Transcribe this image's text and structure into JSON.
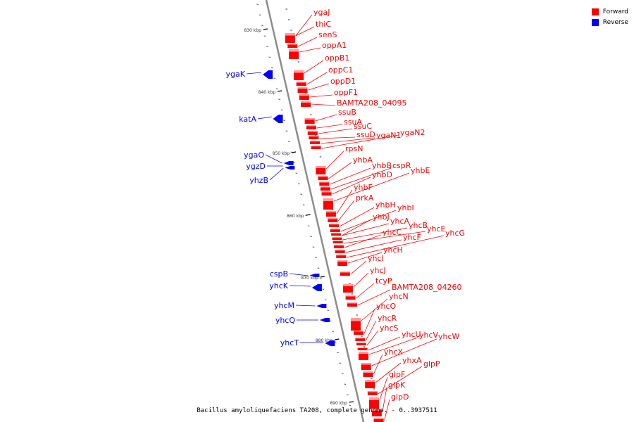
{
  "colors": {
    "forward": "#ff0000",
    "reverse": "#0000ff",
    "backbone": "#8c8c8c"
  },
  "legend": {
    "forward": "Forward",
    "reverse": "Reverse"
  },
  "caption": "Bacillus amyloliquefaciens TA208, complete genome. - 0..3937511",
  "scale_labels": [
    "830 kbp",
    "840 kbp",
    "850 kbp",
    "860 kbp",
    "870 kbp",
    "880 kbp",
    "890 kbp"
  ],
  "forward_genes": [
    "ygaJ",
    "thiC",
    "senS",
    "oppA1",
    "oppB1",
    "oppC1",
    "oppD1",
    "oppF1",
    "BAMTA208_04095",
    "ssuB",
    "ssuA",
    "ssuC",
    "ssuD",
    "ygaN1",
    "ygaN2",
    "rpsN",
    "yhbA",
    "yhbB",
    "cspR",
    "yhbD",
    "yhbE",
    "yhbF",
    "prkA",
    "yhbH",
    "yhbI",
    "yhbJ",
    "yhcA",
    "yhcB",
    "yhcE",
    "yhcC",
    "yhcF",
    "yhcG",
    "yhcH",
    "yhcI",
    "yhcJ",
    "tcyP",
    "BAMTA208_04260",
    "yhcN",
    "yhcO",
    "yhcR",
    "yhcS",
    "yhcU",
    "yhcV",
    "yhcW",
    "yhcX",
    "yhxA",
    "glpP",
    "glpF",
    "glpK",
    "glpD"
  ],
  "reverse_genes": [
    "ygaK",
    "katA",
    "ygaO",
    "ygzD",
    "yhzB",
    "cspB",
    "yhcK",
    "yhcM",
    "yhcQ",
    "yhcT"
  ]
}
